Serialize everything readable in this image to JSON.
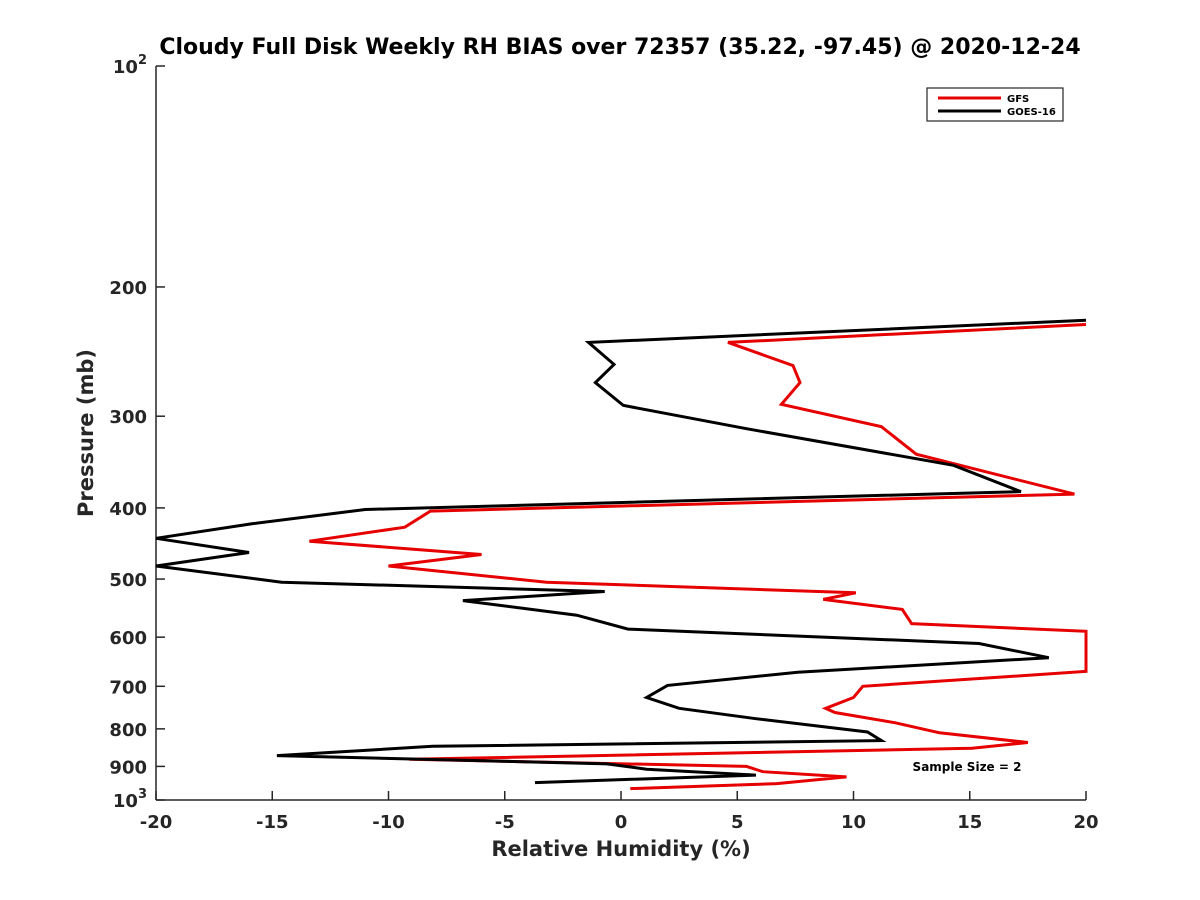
{
  "chart_data": {
    "type": "line",
    "title": "Cloudy Full Disk Weekly RH BIAS over 72357 (35.22, -97.45) @ 2020-12-24",
    "xlabel": "Relative Humidity (%)",
    "ylabel": "Pressure (mb)",
    "xlim": [
      -20,
      20
    ],
    "ylim": [
      1000,
      100
    ],
    "yscale": "log",
    "y_reversed": true,
    "grid": false,
    "legend_position": "top-right",
    "xticks": [
      -20,
      -15,
      -10,
      -5,
      0,
      5,
      10,
      15,
      20
    ],
    "xtick_labels": [
      "-20",
      "-15",
      "-10",
      "-5",
      "0",
      "5",
      "10",
      "15",
      "20"
    ],
    "yticks": [
      100,
      200,
      300,
      400,
      500,
      600,
      700,
      800,
      900,
      1000
    ],
    "ytick_labels": [
      {
        "base": "10",
        "exp": "2"
      },
      {
        "base": "200"
      },
      {
        "base": "300"
      },
      {
        "base": "400"
      },
      {
        "base": "500"
      },
      {
        "base": "600"
      },
      {
        "base": "700"
      },
      {
        "base": "800"
      },
      {
        "base": "900"
      },
      {
        "base": "10",
        "exp": "3"
      }
    ],
    "annotation": "Sample Size = 2",
    "series": [
      {
        "name": "GFS",
        "color": "#e60000",
        "points": [
          [
            20.0,
            225
          ],
          [
            4.6,
            238
          ],
          [
            7.4,
            256
          ],
          [
            7.7,
            270
          ],
          [
            6.9,
            289
          ],
          [
            11.2,
            310
          ],
          [
            12.7,
            338
          ],
          [
            19.5,
            383
          ],
          [
            -8.2,
            404
          ],
          [
            -9.3,
            425
          ],
          [
            -13.4,
            444
          ],
          [
            -6.0,
            463
          ],
          [
            -10.0,
            480
          ],
          [
            -3.2,
            505
          ],
          [
            10.1,
            522
          ],
          [
            8.7,
            533
          ],
          [
            12.1,
            550
          ],
          [
            12.5,
            575
          ],
          [
            20.0,
            589
          ],
          [
            20.0,
            668
          ],
          [
            10.4,
            700
          ],
          [
            10.0,
            725
          ],
          [
            8.8,
            750
          ],
          [
            9.2,
            760
          ],
          [
            11.8,
            785
          ],
          [
            13.7,
            810
          ],
          [
            17.5,
            835
          ],
          [
            15.1,
            850
          ],
          [
            -9.1,
            880
          ],
          [
            5.4,
            900
          ],
          [
            6.1,
            915
          ],
          [
            9.7,
            930
          ],
          [
            6.7,
            950
          ],
          [
            0.4,
            965
          ]
        ]
      },
      {
        "name": "GOES-16",
        "color": "#000000",
        "points": [
          [
            20.0,
            222
          ],
          [
            -1.4,
            238
          ],
          [
            -0.3,
            255
          ],
          [
            -1.1,
            270
          ],
          [
            0.1,
            290
          ],
          [
            5.4,
            312
          ],
          [
            14.3,
            350
          ],
          [
            17.2,
            380
          ],
          [
            -11.0,
            402
          ],
          [
            -15.8,
            420
          ],
          [
            -20.0,
            440
          ],
          [
            -16.0,
            460
          ],
          [
            -20.0,
            480
          ],
          [
            -14.6,
            505
          ],
          [
            -0.7,
            520
          ],
          [
            -6.8,
            535
          ],
          [
            -1.9,
            560
          ],
          [
            0.3,
            585
          ],
          [
            15.4,
            612
          ],
          [
            18.4,
            640
          ],
          [
            7.6,
            670
          ],
          [
            2.0,
            698
          ],
          [
            1.1,
            725
          ],
          [
            2.5,
            750
          ],
          [
            5.8,
            775
          ],
          [
            10.6,
            808
          ],
          [
            11.2,
            830
          ],
          [
            -8.1,
            845
          ],
          [
            -14.8,
            870
          ],
          [
            -0.6,
            893
          ],
          [
            1.1,
            908
          ],
          [
            5.8,
            925
          ],
          [
            -3.7,
            947
          ]
        ]
      }
    ]
  }
}
